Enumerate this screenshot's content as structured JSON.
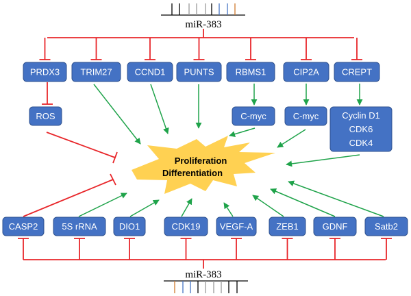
{
  "colors": {
    "box": "#4472C4",
    "inhibit": "#E8262A",
    "promote": "#1FA34A",
    "outcome": "#FFD152"
  },
  "mirna_top": {
    "label": "miR-383",
    "tick_colors": [
      "#000",
      "#000",
      "#999",
      "#999",
      "#999",
      "#000",
      "#4472C4",
      "#4472C4",
      "#D07A2C"
    ]
  },
  "mirna_bottom": {
    "label": "miR-383",
    "tick_colors": [
      "#D07A2C",
      "#4472C4",
      "#4472C4",
      "#000",
      "#999",
      "#999",
      "#999",
      "#000",
      "#000"
    ]
  },
  "outcome": {
    "line1": "Proliferation",
    "line2": "Differentiation"
  },
  "top_targets": [
    "PRDX3",
    "TRIM27",
    "CCND1",
    "PUNTS",
    "RBMS1",
    "CIP2A",
    "CREPT"
  ],
  "downstream": {
    "ros": "ROS",
    "cmyc1": "C-myc",
    "cmyc2": "C-myc",
    "cyclin": [
      "Cyclin D1",
      "CDK6",
      "CDK4"
    ]
  },
  "bottom_targets": [
    "CASP2",
    "5S rRNA",
    "DIO1",
    "CDK19",
    "VEGF-A",
    "ZEB1",
    "GDNF",
    "Satb2"
  ]
}
